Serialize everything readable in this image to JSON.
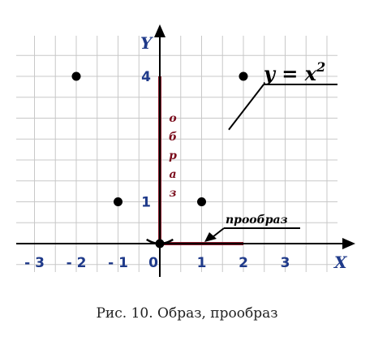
{
  "chart_data": {
    "type": "line",
    "function": "y = x^2",
    "xlim": [
      -3.5,
      4.2
    ],
    "ylim": [
      -0.6,
      5.1
    ],
    "grid": true,
    "x_axis_name": "X",
    "y_axis_name": "Y",
    "x_ticks": [
      -3,
      -2,
      -1,
      0,
      1,
      2,
      3
    ],
    "y_ticks": [
      1,
      4
    ],
    "x_tick_labels": [
      "- 3",
      "- 2",
      "- 1",
      "0",
      "1",
      "2",
      "3"
    ],
    "y_tick_labels": [
      "1",
      "4"
    ],
    "marked_points": [
      {
        "x": -2,
        "y": 4
      },
      {
        "x": -1,
        "y": 1
      },
      {
        "x": 0,
        "y": 0
      },
      {
        "x": 1,
        "y": 1
      },
      {
        "x": 2,
        "y": 4
      }
    ],
    "image_segment": {
      "axis": "y",
      "from": 0,
      "to": 4,
      "label": "о б р а з"
    },
    "preimage_segment": {
      "axis": "x",
      "from": 0,
      "to": 2,
      "label": "прообраз"
    },
    "formula_label": {
      "base": "y = x",
      "exponent": "2"
    },
    "colors": {
      "curve": "#000000",
      "highlight": "#8b1a2b",
      "grid": "#c8c8c8",
      "tick_labels": "#1f3a8a"
    }
  },
  "caption": "Рис. 10. Образ, прообраз"
}
